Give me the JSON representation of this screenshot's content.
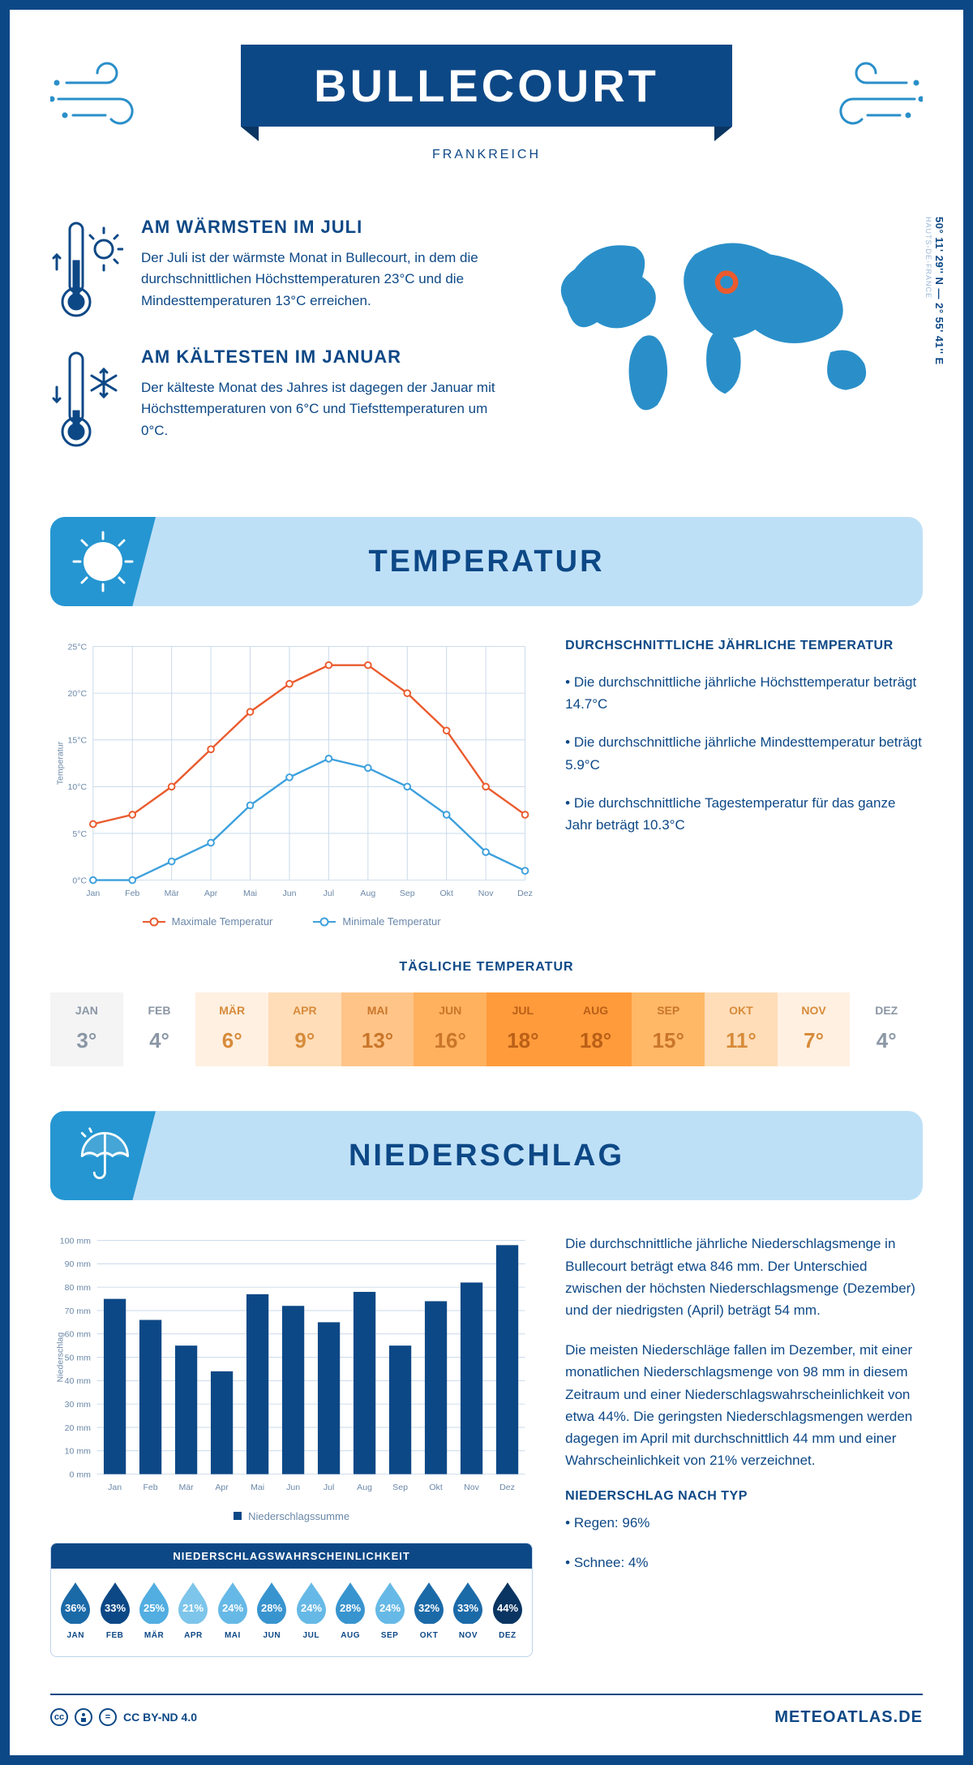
{
  "colors": {
    "primary": "#0d4886",
    "banner_light": "#bee0f7",
    "banner_accent": "#2596d1",
    "line_max": "#ea5b2e",
    "line_min": "#3da0dd",
    "grid": "#c9d9ea",
    "axis_text": "#6b88a9"
  },
  "header": {
    "title": "BULLECOURT",
    "subtitle": "FRANKREICH"
  },
  "intro": {
    "warm_title": "AM WÄRMSTEN IM JULI",
    "warm_text": "Der Juli ist der wärmste Monat in Bullecourt, in dem die durchschnittlichen Höchsttemperaturen 23°C und die Mindesttemperaturen 13°C erreichen.",
    "cold_title": "AM KÄLTESTEN IM JANUAR",
    "cold_text": "Der kälteste Monat des Jahres ist dagegen der Januar mit Höchsttemperaturen von 6°C und Tiefsttemperaturen um 0°C.",
    "coords": "50° 11' 29'' N — 2° 55' 41'' E",
    "region": "HAUTS-DE-FRANCE"
  },
  "temp_section": {
    "heading": "TEMPERATUR",
    "chart": {
      "type": "line",
      "months": [
        "Jan",
        "Feb",
        "Mär",
        "Apr",
        "Mai",
        "Jun",
        "Jul",
        "Aug",
        "Sep",
        "Okt",
        "Nov",
        "Dez"
      ],
      "max": [
        6,
        7,
        10,
        14,
        18,
        21,
        23,
        23,
        20,
        16,
        10,
        7
      ],
      "min": [
        0,
        0,
        2,
        4,
        8,
        11,
        13,
        12,
        10,
        7,
        3,
        1
      ],
      "ylim": [
        0,
        25
      ],
      "ytick_step": 5,
      "ylabel": "Temperatur",
      "legend_max": "Maximale Temperatur",
      "legend_min": "Minimale Temperatur",
      "line_width": 2.5,
      "marker": "circle",
      "marker_size": 4
    },
    "avg_title": "DURCHSCHNITTLICHE JÄHRLICHE TEMPERATUR",
    "bullet1": "• Die durchschnittliche jährliche Höchsttemperatur beträgt 14.7°C",
    "bullet2": "• Die durchschnittliche jährliche Mindesttemperatur beträgt 5.9°C",
    "bullet3": "• Die durchschnittliche Tagestemperatur für das ganze Jahr beträgt 10.3°C",
    "daily_title": "TÄGLICHE TEMPERATUR",
    "daily": {
      "months": [
        "JAN",
        "FEB",
        "MÄR",
        "APR",
        "MAI",
        "JUN",
        "JUL",
        "AUG",
        "SEP",
        "OKT",
        "NOV",
        "DEZ"
      ],
      "values": [
        "3°",
        "4°",
        "6°",
        "9°",
        "13°",
        "16°",
        "18°",
        "18°",
        "15°",
        "11°",
        "7°",
        "4°"
      ],
      "bg_colors": [
        "#f4f4f5",
        "#ffffff",
        "#fff0e1",
        "#ffddb8",
        "#ffc488",
        "#ffb15e",
        "#ff9b3b",
        "#ff9b3b",
        "#ffb866",
        "#ffddb8",
        "#fff0e1",
        "#ffffff"
      ],
      "text_colors": [
        "#8b97a5",
        "#8b97a5",
        "#d78b3a",
        "#d78b3a",
        "#c9762a",
        "#c9762a",
        "#ba5f17",
        "#ba5f17",
        "#c9762a",
        "#d78b3a",
        "#d78b3a",
        "#8b97a5"
      ]
    }
  },
  "precip_section": {
    "heading": "NIEDERSCHLAG",
    "chart": {
      "type": "bar",
      "months": [
        "Jan",
        "Feb",
        "Mär",
        "Apr",
        "Mai",
        "Jun",
        "Jul",
        "Aug",
        "Sep",
        "Okt",
        "Nov",
        "Dez"
      ],
      "values": [
        75,
        66,
        55,
        44,
        77,
        72,
        65,
        78,
        55,
        74,
        82,
        98
      ],
      "ylim": [
        0,
        100
      ],
      "ytick_step": 10,
      "ylabel": "Niederschlag",
      "bar_color": "#0d4886",
      "bar_width": 0.62,
      "legend": "Niederschlagssumme"
    },
    "para1": "Die durchschnittliche jährliche Niederschlagsmenge in Bullecourt beträgt etwa 846 mm. Der Unterschied zwischen der höchsten Niederschlagsmenge (Dezember) und der niedrigsten (April) beträgt 54 mm.",
    "para2": "Die meisten Niederschläge fallen im Dezember, mit einer monatlichen Niederschlagsmenge von 98 mm in diesem Zeitraum und einer Niederschlagswahrscheinlichkeit von etwa 44%. Die geringsten Niederschlagsmengen werden dagegen im April mit durchschnittlich 44 mm und einer Wahrscheinlichkeit von 21% verzeichnet.",
    "type_title": "NIEDERSCHLAG NACH TYP",
    "type_line1": "• Regen: 96%",
    "type_line2": "• Schnee: 4%",
    "prob_title": "NIEDERSCHLAGSWAHRSCHEINLICHKEIT",
    "prob": {
      "months": [
        "JAN",
        "FEB",
        "MÄR",
        "APR",
        "MAI",
        "JUN",
        "JUL",
        "AUG",
        "SEP",
        "OKT",
        "NOV",
        "DEZ"
      ],
      "values": [
        "36%",
        "33%",
        "25%",
        "21%",
        "24%",
        "28%",
        "24%",
        "28%",
        "24%",
        "32%",
        "33%",
        "44%"
      ],
      "colors": [
        "#1b6aa8",
        "#0d4886",
        "#52aee1",
        "#7dc5ea",
        "#66b9e6",
        "#3894cf",
        "#66b9e6",
        "#3894cf",
        "#66b9e6",
        "#1b6aa8",
        "#1b6aa8",
        "#0a3562"
      ]
    }
  },
  "footer": {
    "license": "CC BY-ND 4.0",
    "brand": "METEOATLAS.DE"
  }
}
